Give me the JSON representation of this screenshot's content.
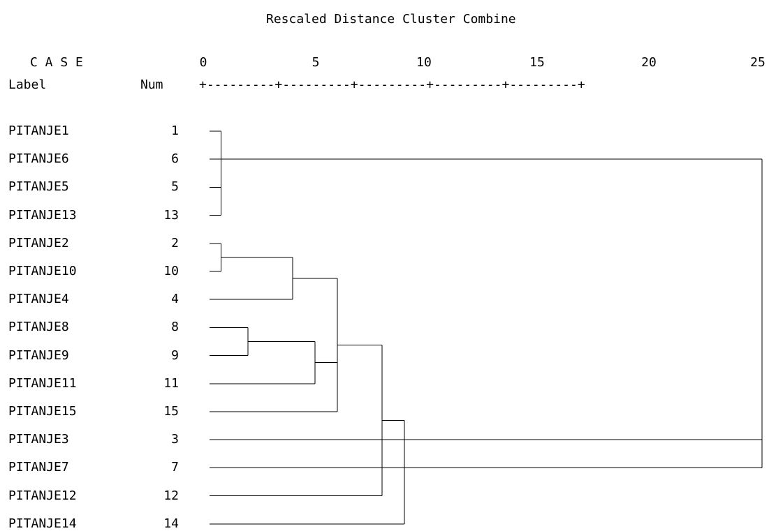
{
  "title": "Rescaled Distance Cluster Combine",
  "header": {
    "case_label": "C A S E",
    "label_col": "Label",
    "num_col": "Num"
  },
  "axis": {
    "ticks": [
      "0",
      "5",
      "10",
      "15",
      "20",
      "25"
    ],
    "rule": "+---------+---------+---------+---------+---------+"
  },
  "cases": [
    {
      "label": "PITANJE1",
      "num": "1"
    },
    {
      "label": "PITANJE6",
      "num": "6"
    },
    {
      "label": "PITANJE5",
      "num": "5"
    },
    {
      "label": "PITANJE13",
      "num": "13"
    },
    {
      "label": "PITANJE2",
      "num": "2"
    },
    {
      "label": "PITANJE10",
      "num": "10"
    },
    {
      "label": "PITANJE4",
      "num": "4"
    },
    {
      "label": "PITANJE8",
      "num": "8"
    },
    {
      "label": "PITANJE9",
      "num": "9"
    },
    {
      "label": "PITANJE11",
      "num": "11"
    },
    {
      "label": "PITANJE15",
      "num": "15"
    },
    {
      "label": "PITANJE3",
      "num": "3"
    },
    {
      "label": "PITANJE7",
      "num": "7"
    },
    {
      "label": "PITANJE12",
      "num": "12"
    },
    {
      "label": "PITANJE14",
      "num": "14"
    }
  ],
  "merges": [
    {
      "rows": [
        0,
        1,
        2,
        3
      ],
      "distance": 0.8
    },
    {
      "rows": [
        4,
        5
      ],
      "distance": 0.8
    },
    {
      "rows": [
        4,
        6
      ],
      "distance": 4.0
    },
    {
      "rows": [
        7,
        8
      ],
      "distance": 2.0
    },
    {
      "rows": [
        7,
        9
      ],
      "distance": 5.0
    },
    {
      "rows": [
        4,
        7,
        10
      ],
      "distance": 6.0
    },
    {
      "rows": [
        4,
        13
      ],
      "distance": 8.0
    },
    {
      "rows": [
        4,
        14
      ],
      "distance": 9.0
    },
    {
      "rows": [
        0,
        11,
        12
      ],
      "distance": 25.0
    }
  ]
}
